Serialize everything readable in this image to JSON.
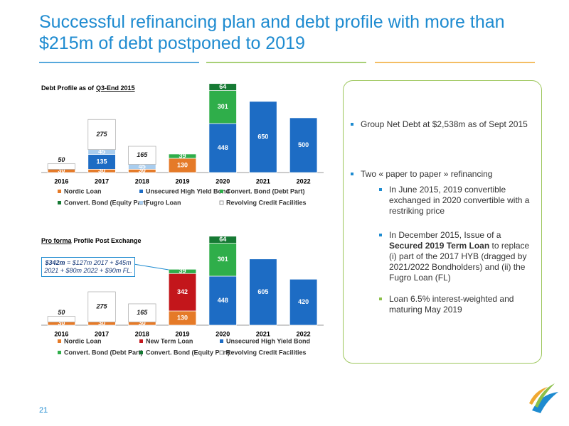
{
  "title": "Successful refinancing plan and debt profile with more than $215m of debt postponed to 2019",
  "page_number": "21",
  "bullets": {
    "net_debt": "Group Net Debt at $2,538m as of Sept 2015",
    "refinancing": "Two « paper to paper » refinancing",
    "june": "In June 2015, 2019 convertible exchanged in 2020 convertible with a restriking price",
    "december": [
      "In December 2015, Issue of a",
      "Secured 2019 Term Loan",
      "to replace (i) part of the 2017 HYB (dragged by 2021/2022 Bondholders) and (ii) the Fugro Loan (FL)"
    ],
    "loan": "Loan 6.5% interest-weighted and maturing May 2019"
  },
  "chart_data": [
    {
      "type": "bar",
      "stacked": true,
      "title_parts": [
        {
          "text": "Debt Profile as of",
          "underline": false
        },
        {
          "text": "Q3-End 2015",
          "underline": true
        }
      ],
      "categories": [
        "2016",
        "2017",
        "2018",
        "2019",
        "2020",
        "2021",
        "2022"
      ],
      "ylim": [
        0,
        850
      ],
      "series": [
        {
          "name": "Nordic Loan",
          "color": "#e57a28",
          "values": [
            30,
            30,
            30,
            130,
            null,
            null,
            null
          ]
        },
        {
          "name": "Unsecured High Yield Bond",
          "color": "#1d6cc4",
          "values": [
            null,
            135,
            null,
            null,
            448,
            650,
            500
          ]
        },
        {
          "name": "Convert. Bond (Debt Part)",
          "color": "#2fae4a",
          "values": [
            null,
            null,
            null,
            39,
            301,
            null,
            null
          ]
        },
        {
          "name": "Convert. Bond (Equity Part)",
          "color": "#167a34",
          "values": [
            null,
            null,
            null,
            null,
            64,
            null,
            null
          ]
        },
        {
          "name": "Fugro Loan",
          "color": "#a9cdee",
          "values": [
            null,
            45,
            45,
            null,
            null,
            null,
            null
          ]
        },
        {
          "name": "Revolving Credit Facilities",
          "color": "#ffffff",
          "values": [
            50,
            275,
            165,
            null,
            null,
            null,
            null
          ]
        }
      ]
    },
    {
      "type": "bar",
      "stacked": true,
      "title_parts": [
        {
          "text": "Pro forma",
          "underline": true
        },
        {
          "text": "Profile Post Exchange",
          "underline": false
        }
      ],
      "categories": [
        "2016",
        "2017",
        "2018",
        "2019",
        "2020",
        "2021",
        "2022"
      ],
      "ylim": [
        0,
        850
      ],
      "annotation": {
        "bold": "$342m",
        "text": "= $127m 2017 + $45m 2021 + $80m 2022 + $90m FL."
      },
      "series": [
        {
          "name": "Nordic Loan",
          "color": "#e57a28",
          "values": [
            30,
            30,
            30,
            130,
            null,
            null,
            null
          ]
        },
        {
          "name": "New Term Loan",
          "color": "#c3161b",
          "values": [
            null,
            null,
            null,
            342,
            null,
            null,
            null
          ]
        },
        {
          "name": "Unsecured High Yield Bond",
          "color": "#1d6cc4",
          "values": [
            null,
            null,
            null,
            null,
            448,
            605,
            420
          ]
        },
        {
          "name": "Convert. Bond (Debt Part)",
          "color": "#2fae4a",
          "values": [
            null,
            null,
            null,
            39,
            301,
            null,
            null
          ]
        },
        {
          "name": "Convert. Bond (Equity Part)",
          "color": "#167a34",
          "values": [
            null,
            null,
            null,
            null,
            64,
            null,
            null
          ]
        },
        {
          "name": "Revolving Credit Facilities",
          "color": "#ffffff",
          "values": [
            50,
            275,
            165,
            null,
            null,
            null,
            null
          ]
        }
      ]
    }
  ]
}
